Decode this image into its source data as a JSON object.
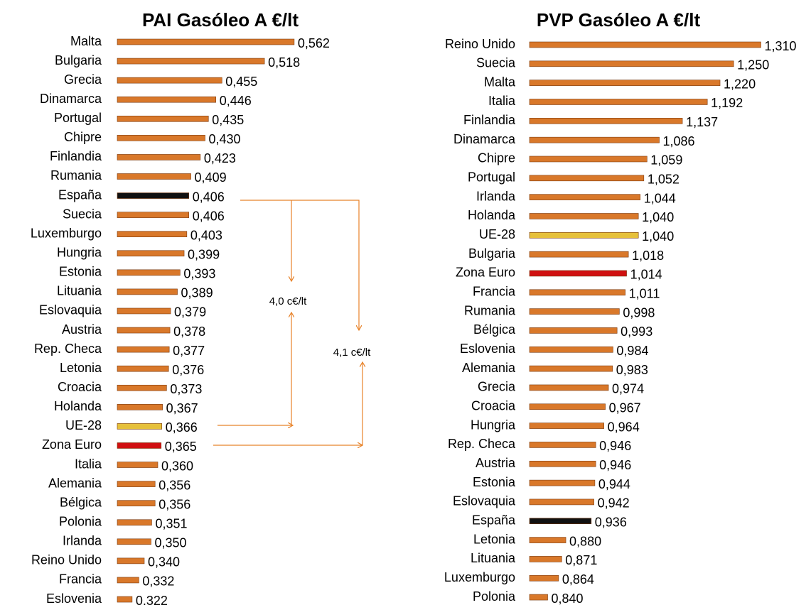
{
  "chart_data": [
    {
      "type": "bar",
      "orientation": "horizontal",
      "title": "PAI Gasóleo A €/lt",
      "categories": [
        "Malta",
        "Bulgaria",
        "Grecia",
        "Dinamarca",
        "Portugal",
        "Chipre",
        "Finlandia",
        "Rumania",
        "España",
        "Suecia",
        "Luxemburgo",
        "Hungria",
        "Estonia",
        "Lituania",
        "Eslovaquia",
        "Austria",
        "Rep. Checa",
        "Letonia",
        "Croacia",
        "Holanda",
        "UE-28",
        "Zona Euro",
        "Italia",
        "Alemania",
        "Bélgica",
        "Polonia",
        "Irlanda",
        "Reino Unido",
        "Francia",
        "Eslovenia"
      ],
      "values": [
        0.562,
        0.518,
        0.455,
        0.446,
        0.435,
        0.43,
        0.423,
        0.409,
        0.406,
        0.406,
        0.403,
        0.399,
        0.393,
        0.389,
        0.379,
        0.378,
        0.377,
        0.376,
        0.373,
        0.367,
        0.366,
        0.365,
        0.36,
        0.356,
        0.356,
        0.351,
        0.35,
        0.34,
        0.332,
        0.322
      ],
      "value_labels": [
        "0,562",
        "0,518",
        "0,455",
        "0,446",
        "0,435",
        "0,430",
        "0,423",
        "0,409",
        "0,406",
        "0,406",
        "0,403",
        "0,399",
        "0,393",
        "0,389",
        "0,379",
        "0,378",
        "0,377",
        "0,376",
        "0,373",
        "0,367",
        "0,366",
        "0,365",
        "0,360",
        "0,356",
        "0,356",
        "0,351",
        "0,350",
        "0,340",
        "0,332",
        "0,322"
      ],
      "colors": [
        "#d9782a",
        "#d9782a",
        "#d9782a",
        "#d9782a",
        "#d9782a",
        "#d9782a",
        "#d9782a",
        "#d9782a",
        "#111111",
        "#d9782a",
        "#d9782a",
        "#d9782a",
        "#d9782a",
        "#d9782a",
        "#d9782a",
        "#d9782a",
        "#d9782a",
        "#d9782a",
        "#d9782a",
        "#d9782a",
        "#e6c03a",
        "#d01010",
        "#d9782a",
        "#d9782a",
        "#d9782a",
        "#d9782a",
        "#d9782a",
        "#d9782a",
        "#d9782a",
        "#d9782a"
      ],
      "xlim": [
        0.3,
        0.6
      ],
      "annotations": [
        "4,0 c€/lt",
        "4,1 c€/lt"
      ]
    },
    {
      "type": "bar",
      "orientation": "horizontal",
      "title": "PVP Gasóleo A €/lt",
      "categories": [
        "Reino Unido",
        "Suecia",
        "Malta",
        "Italia",
        "Finlandia",
        "Dinamarca",
        "Chipre",
        "Portugal",
        "Irlanda",
        "Holanda",
        "UE-28",
        "Bulgaria",
        "Zona Euro",
        "Francia",
        "Rumania",
        "Bélgica",
        "Eslovenia",
        "Alemania",
        "Grecia",
        "Croacia",
        "Hungria",
        "Rep. Checa",
        "Austria",
        "Estonia",
        "Eslovaquia",
        "España",
        "Letonia",
        "Lituania",
        "Luxemburgo",
        "Polonia"
      ],
      "values": [
        1.31,
        1.25,
        1.22,
        1.192,
        1.137,
        1.086,
        1.059,
        1.052,
        1.044,
        1.04,
        1.04,
        1.018,
        1.014,
        1.011,
        0.998,
        0.993,
        0.984,
        0.983,
        0.974,
        0.967,
        0.964,
        0.946,
        0.946,
        0.944,
        0.942,
        0.936,
        0.88,
        0.871,
        0.864,
        0.84
      ],
      "value_labels": [
        "1,310",
        "1,250",
        "1,220",
        "1,192",
        "1,137",
        "1,086",
        "1,059",
        "1,052",
        "1,044",
        "1,040",
        "1,040",
        "1,018",
        "1,014",
        "1,011",
        "0,998",
        "0,993",
        "0,984",
        "0,983",
        "0,974",
        "0,967",
        "0,964",
        "0,946",
        "0,946",
        "0,944",
        "0,942",
        "0,936",
        "0,880",
        "0,871",
        "0,864",
        "0,840"
      ],
      "colors": [
        "#d9782a",
        "#d9782a",
        "#d9782a",
        "#d9782a",
        "#d9782a",
        "#d9782a",
        "#d9782a",
        "#d9782a",
        "#d9782a",
        "#d9782a",
        "#e6c03a",
        "#d9782a",
        "#d01010",
        "#d9782a",
        "#d9782a",
        "#d9782a",
        "#d9782a",
        "#d9782a",
        "#d9782a",
        "#d9782a",
        "#d9782a",
        "#d9782a",
        "#d9782a",
        "#d9782a",
        "#d9782a",
        "#111111",
        "#d9782a",
        "#d9782a",
        "#d9782a",
        "#d9782a"
      ],
      "xlim": [
        0.8,
        1.35
      ]
    }
  ]
}
